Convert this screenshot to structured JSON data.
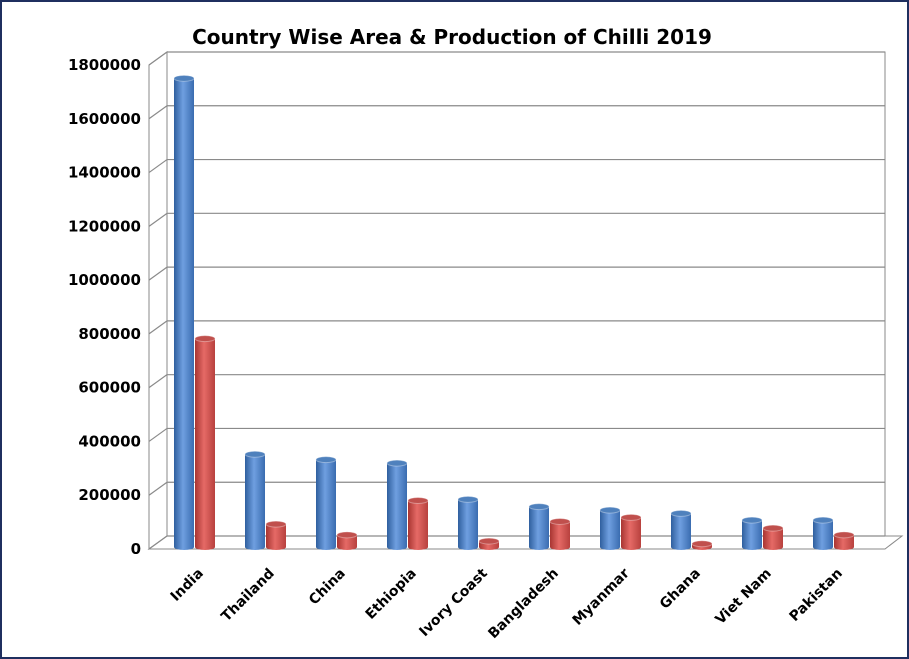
{
  "chart_data": {
    "type": "bar",
    "title": "Country Wise Area & Production of Chilli 2019",
    "xlabel": "",
    "ylabel": "",
    "ylim": [
      0,
      1800000
    ],
    "yticks": [
      0,
      200000,
      400000,
      600000,
      800000,
      1000000,
      1200000,
      1400000,
      1600000,
      1800000
    ],
    "grid": true,
    "legend": "none",
    "categories": [
      "India",
      "Thailand",
      "China",
      "Ethiopia",
      "Ivory Coast",
      "Bangladesh",
      "Myanmar",
      "Ghana",
      "Viet Nam",
      "Pakistan"
    ],
    "series": [
      {
        "color": "#4f81bd",
        "values": [
          1743000,
          345000,
          325000,
          312000,
          177000,
          150000,
          137000,
          125000,
          100000,
          100000
        ]
      },
      {
        "color": "#c0504d",
        "values": [
          775000,
          85000,
          45000,
          173000,
          22000,
          95000,
          110000,
          12000,
          70000,
          45000
        ]
      }
    ]
  }
}
